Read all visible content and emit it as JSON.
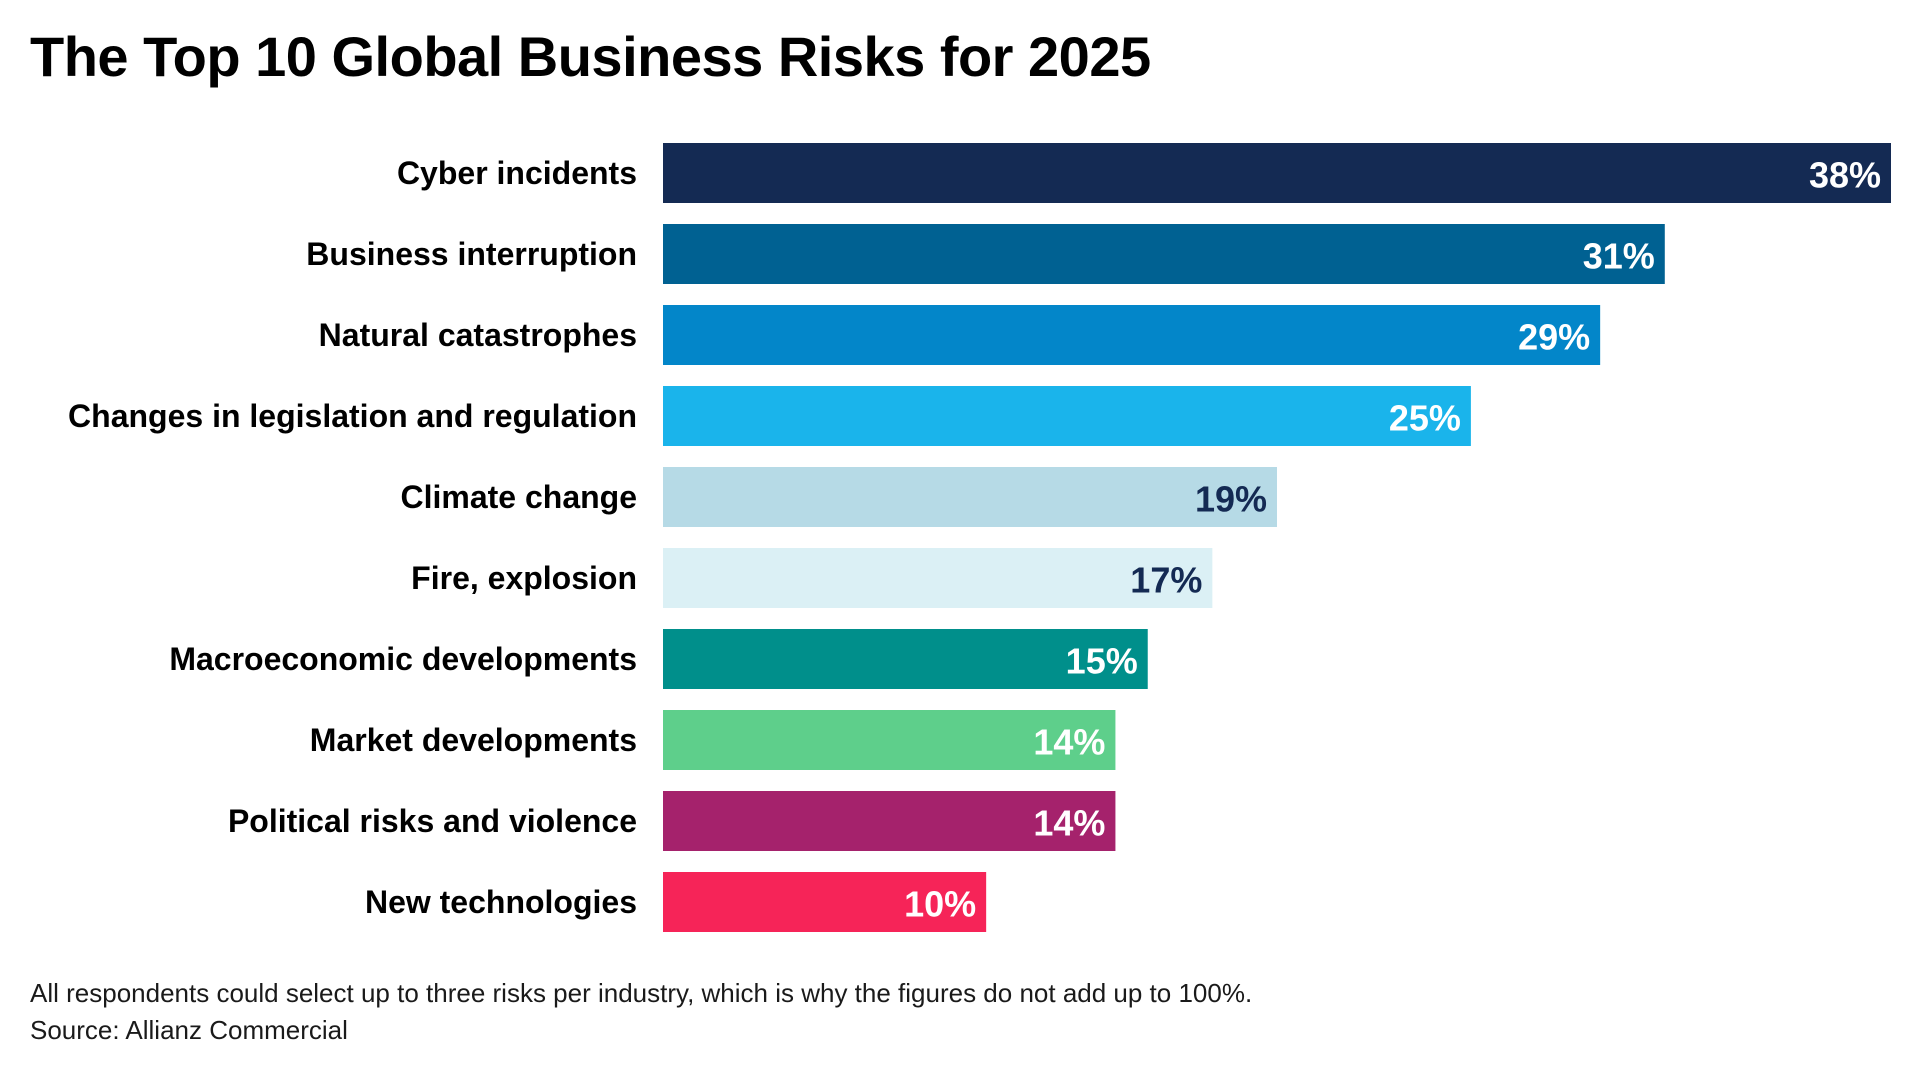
{
  "chart_data": {
    "type": "bar",
    "orientation": "horizontal",
    "title": "The Top 10 Global Business Risks for 2025",
    "categories": [
      "Cyber incidents",
      "Business interruption",
      "Natural catastrophes",
      "Changes in legislation and regulation",
      "Climate change",
      "Fire, explosion",
      "Macroeconomic developments",
      "Market developments",
      "Political risks and violence",
      "New technologies"
    ],
    "values": [
      38,
      31,
      29,
      25,
      19,
      17,
      15,
      14,
      14,
      10
    ],
    "value_labels": [
      "38%",
      "31%",
      "29%",
      "25%",
      "19%",
      "17%",
      "15%",
      "14%",
      "14%",
      "10%"
    ],
    "bar_colors": [
      "#142a53",
      "#006192",
      "#0386c9",
      "#1ab4eb",
      "#b6dae6",
      "#dbf0f5",
      "#008f8b",
      "#5ecf8b",
      "#a5226c",
      "#f62458"
    ],
    "value_label_colors": [
      "#ffffff",
      "#ffffff",
      "#ffffff",
      "#ffffff",
      "#142a53",
      "#142a53",
      "#ffffff",
      "#ffffff",
      "#ffffff",
      "#ffffff"
    ],
    "xlim": [
      0,
      38
    ],
    "grid": false,
    "legend": "none"
  },
  "footnote": {
    "note": "All respondents could select up to three risks per industry, which is why the figures do not add up to 100%.",
    "source": "Source: Allianz Commercial"
  }
}
